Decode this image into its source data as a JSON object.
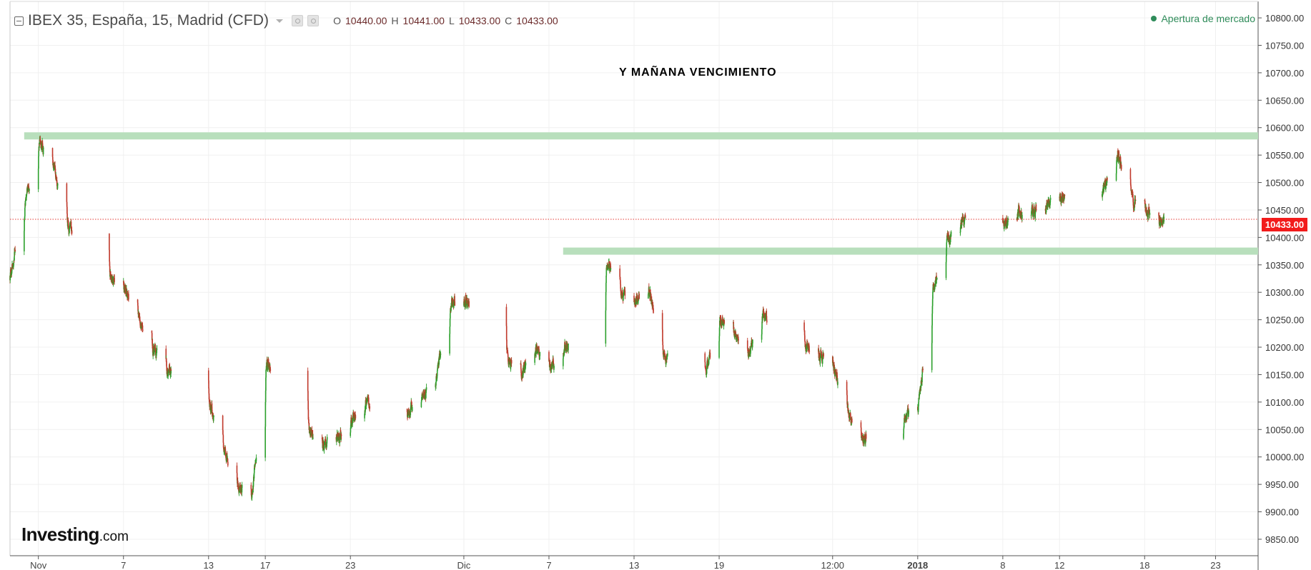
{
  "header": {
    "symbol": "IBEX 35, España, 15, Madrid (CFD)",
    "ohlc": [
      {
        "key": "O",
        "value": "10440.00"
      },
      {
        "key": "H",
        "value": "10441.00"
      },
      {
        "key": "L",
        "value": "10433.00"
      },
      {
        "key": "C",
        "value": "10433.00"
      }
    ]
  },
  "market_status": "Apertura de mercado",
  "annotation": "Y MAÑANA VENCIMIENTO",
  "branding": {
    "name": "Investing",
    "tld": ".com"
  },
  "price_badge": "10433.00",
  "colors": {
    "up": "#2ca02c",
    "down": "#c0392b",
    "zone": "#b8dfbc",
    "current_price": "#e53935",
    "market_open": "#2f8c5a"
  },
  "chart_data": {
    "type": "line",
    "title": "IBEX 35, España, 15, Madrid (CFD)",
    "subtitle": "",
    "xlabel": "",
    "ylabel": "",
    "series": [
      {
        "x": [
          "2017-10-30",
          "2017-10-31",
          "2017-11-01",
          "2017-11-02",
          "2017-11-03",
          "2017-11-06",
          "2017-11-07",
          "2017-11-08",
          "2017-11-09",
          "2017-11-10",
          "2017-11-13",
          "2017-11-14",
          "2017-11-15",
          "2017-11-16",
          "2017-11-17",
          "2017-11-20",
          "2017-11-21",
          "2017-11-22",
          "2017-11-23",
          "2017-11-24",
          "2017-11-27",
          "2017-11-28",
          "2017-11-29",
          "2017-11-30",
          "2017-12-01",
          "2017-12-04",
          "2017-12-05",
          "2017-12-06",
          "2017-12-07",
          "2017-12-08",
          "2017-12-11",
          "2017-12-12",
          "2017-12-13",
          "2017-12-14",
          "2017-12-15",
          "2017-12-18",
          "2017-12-19",
          "2017-12-20",
          "2017-12-21",
          "2017-12-22",
          "2017-12-27",
          "2017-12-28",
          "2017-12-29",
          "2018-01-02",
          "2018-01-03",
          "2018-01-04",
          "2018-01-05",
          "2018-01-08",
          "2018-01-09",
          "2018-01-10",
          "2018-01-11",
          "2018-01-12",
          "2018-01-15",
          "2018-01-16",
          "2018-01-17",
          "2018-01-18",
          "2018-01-19"
        ],
        "values": [
          10330,
          10460,
          10575,
          10530,
          10420,
          10330,
          10310,
          10250,
          10200,
          10160,
          10100,
          10020,
          9950,
          9920,
          10170,
          10050,
          10020,
          10030,
          10060,
          10100,
          10080,
          10110,
          10140,
          10280,
          10290,
          10180,
          10150,
          10200,
          10160,
          10190,
          10360,
          10300,
          10280,
          10310,
          10180,
          10150,
          10250,
          10230,
          10180,
          10260,
          10170,
          10080,
          10030,
          10090,
          10300,
          10390,
          10430,
          10420,
          10445,
          10440,
          10460,
          10470,
          10480,
          10560,
          10470,
          10450,
          10433
        ]
      }
    ],
    "y_ticks": [
      9850,
      9900,
      9950,
      10000,
      10050,
      10100,
      10150,
      10200,
      10250,
      10300,
      10350,
      10400,
      10450,
      10500,
      10550,
      10600,
      10650,
      10700,
      10750,
      10800
    ],
    "ylim": [
      9820,
      10830
    ],
    "x_tick_labels": [
      {
        "label": "Nov",
        "x": "2017-11-01",
        "bold": false
      },
      {
        "label": "7",
        "x": "2017-11-07",
        "bold": false
      },
      {
        "label": "13",
        "x": "2017-11-13",
        "bold": false
      },
      {
        "label": "17",
        "x": "2017-11-17",
        "bold": false
      },
      {
        "label": "23",
        "x": "2017-11-23",
        "bold": false
      },
      {
        "label": "Dic",
        "x": "2017-12-01",
        "bold": false
      },
      {
        "label": "7",
        "x": "2017-12-07",
        "bold": false
      },
      {
        "label": "13",
        "x": "2017-12-13",
        "bold": false
      },
      {
        "label": "19",
        "x": "2017-12-19",
        "bold": false
      },
      {
        "label": "12:00",
        "x": "2017-12-27",
        "bold": false
      },
      {
        "label": "2018",
        "x": "2018-01-02",
        "bold": true
      },
      {
        "label": "8",
        "x": "2018-01-08",
        "bold": false
      },
      {
        "label": "12",
        "x": "2018-01-12",
        "bold": false
      },
      {
        "label": "18",
        "x": "2018-01-18",
        "bold": false
      },
      {
        "label": "23",
        "x": "2018-01-23",
        "bold": false
      }
    ],
    "x_range": [
      "2017-10-30",
      "2018-01-26"
    ],
    "zones": [
      {
        "y": 10585,
        "x_start": "2017-10-31",
        "x_end": "2018-01-26"
      },
      {
        "y": 10375,
        "x_start": "2017-12-08",
        "x_end": "2018-01-26"
      }
    ],
    "current_price": 10433,
    "grid": true,
    "legend": "none"
  }
}
